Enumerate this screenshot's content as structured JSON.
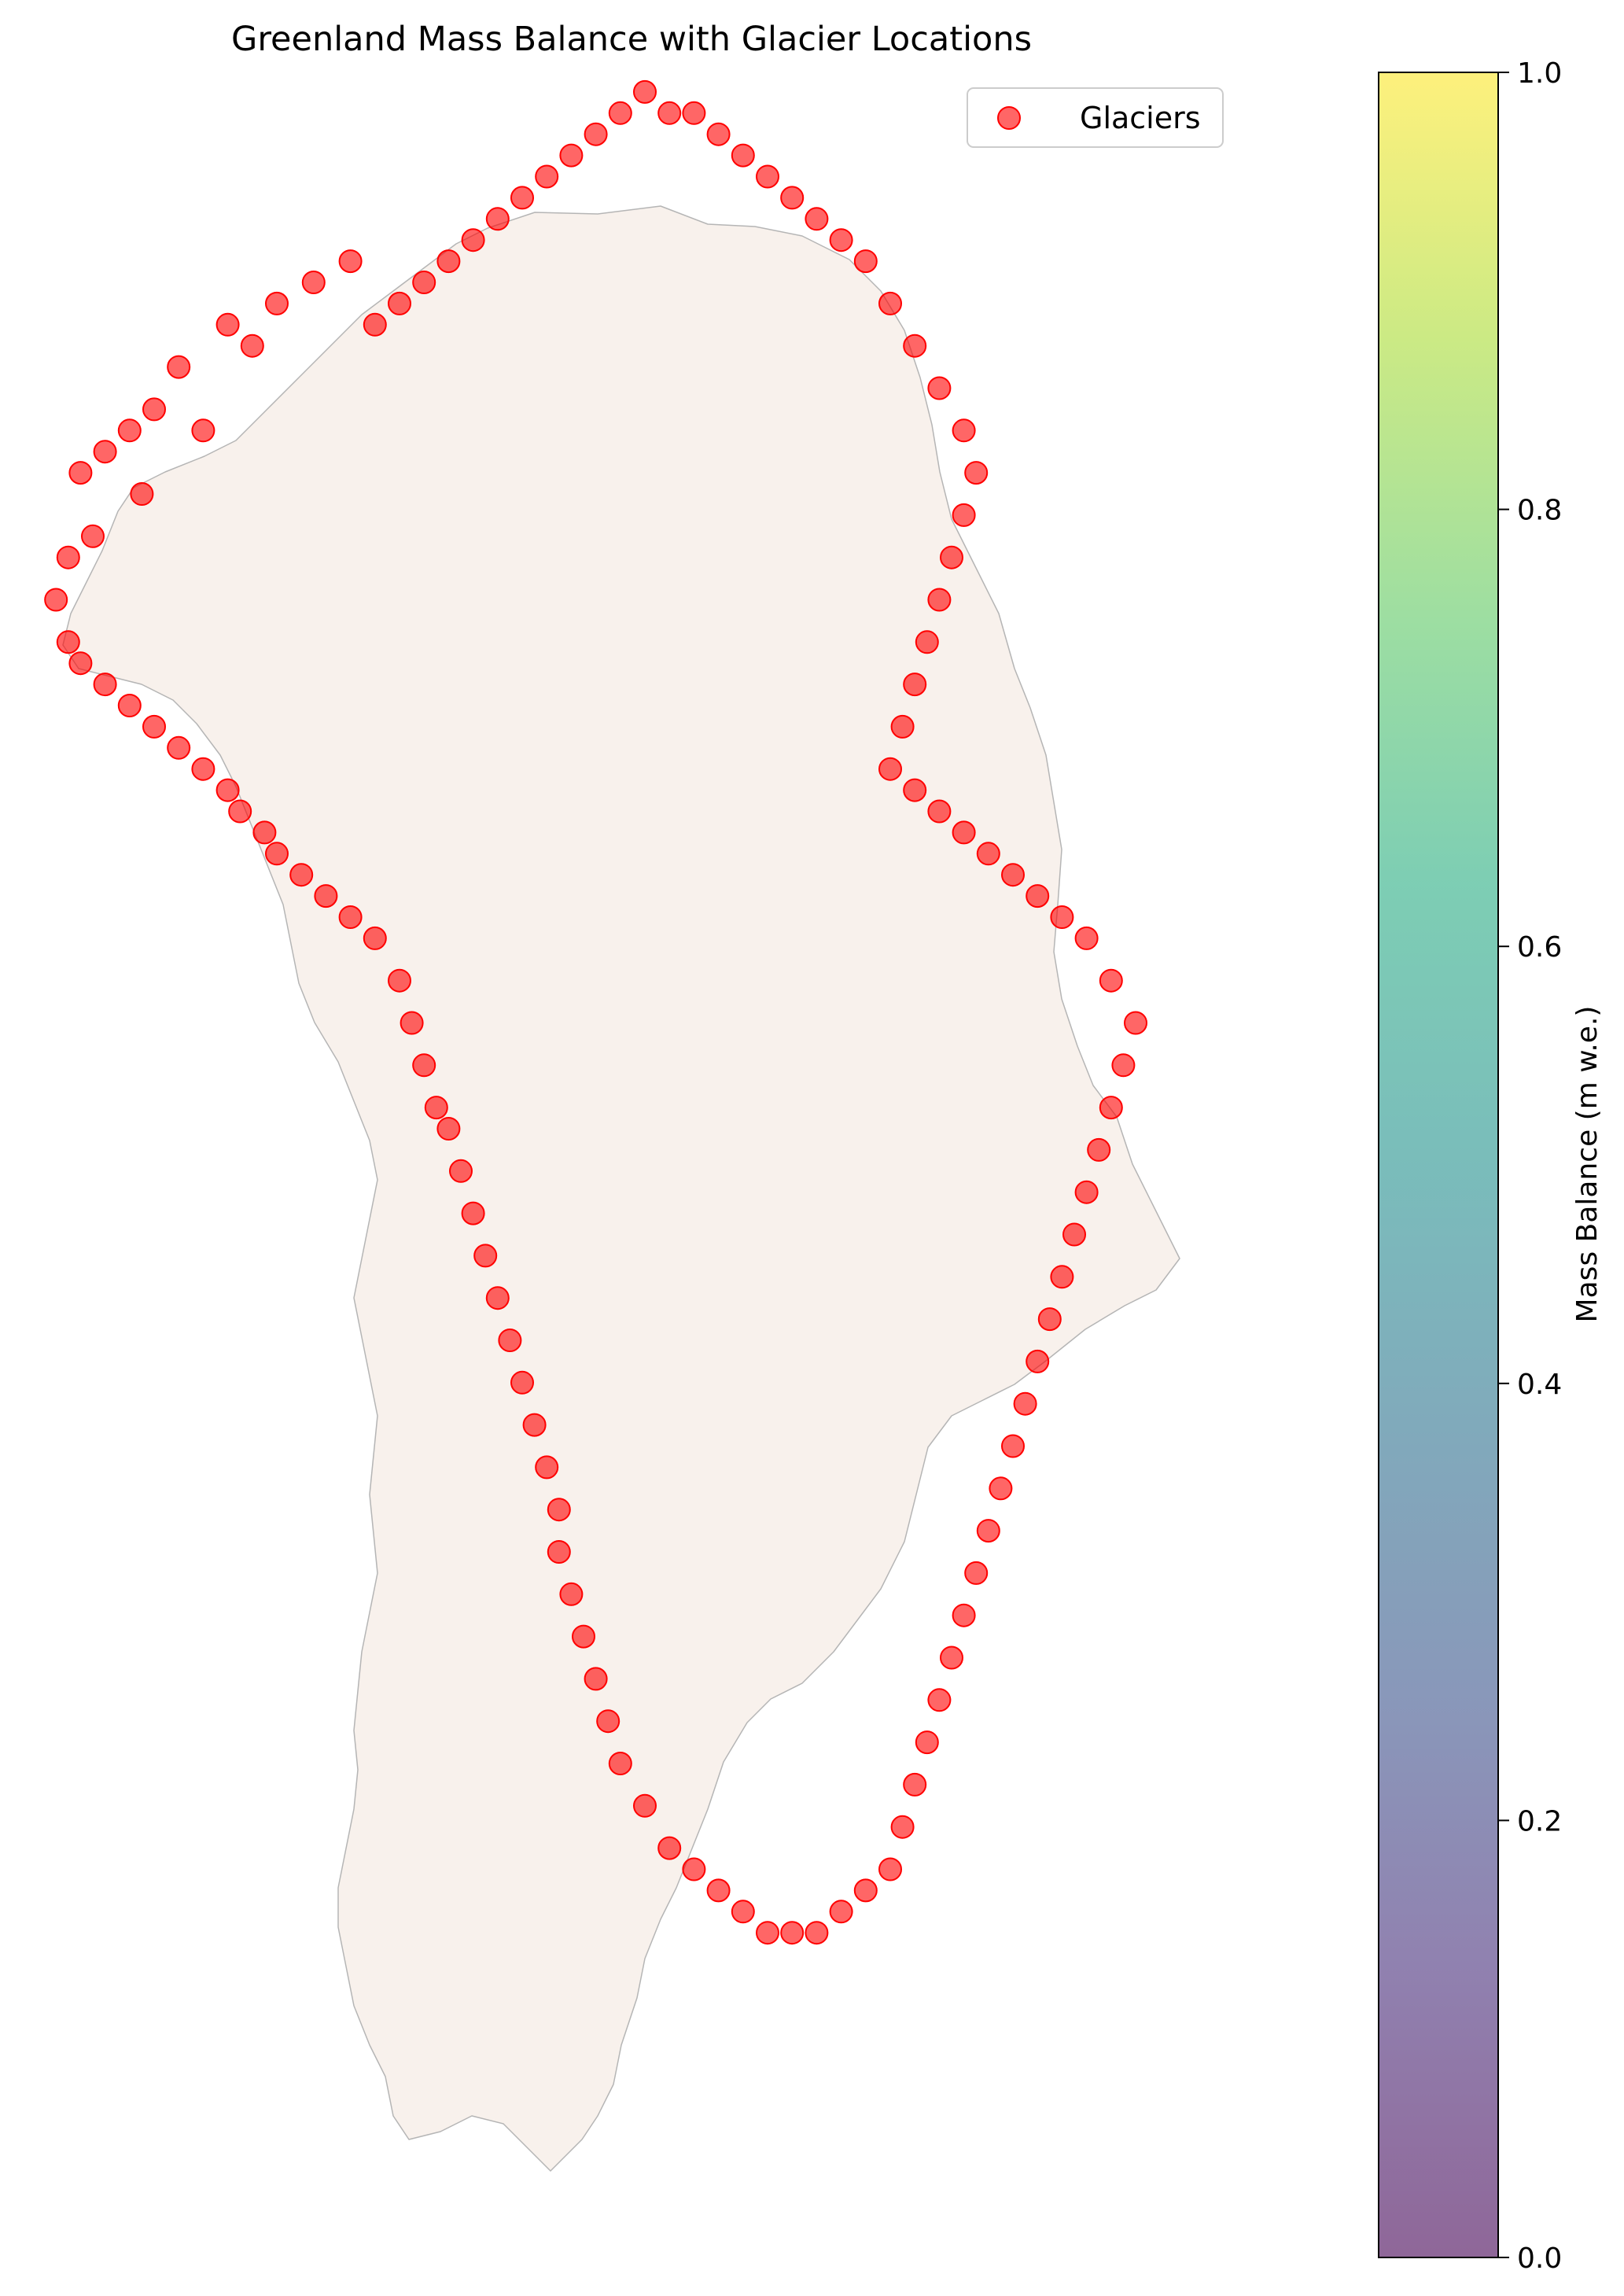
{
  "title": "Greenland Mass Balance with Glacier Locations",
  "legend": {
    "label": "Glaciers",
    "placement": "top-right"
  },
  "colorbar": {
    "label": "Mass Balance (m w.e.)",
    "range": [
      0.0,
      1.0
    ],
    "ticks": [
      "0.0",
      "0.2",
      "0.4",
      "0.6",
      "0.8",
      "1.0"
    ],
    "colormap": "viridis",
    "alpha": 0.6
  },
  "colors": {
    "glacier_marker": "#ff0000",
    "ice_sheet_fill": "#f8f1ec",
    "coastline": "#a6a6a6"
  },
  "chart_data": {
    "type": "scatter",
    "axes_visible": false,
    "series": [
      {
        "name": "Glaciers",
        "marker": "circle",
        "color": "#ff0000",
        "alpha": 0.6,
        "points": [
          [
            26,
            9
          ],
          [
            23,
            10
          ],
          [
            20,
            11
          ],
          [
            16,
            12
          ],
          [
            18,
            13
          ],
          [
            12,
            14
          ],
          [
            10,
            16
          ],
          [
            8,
            17
          ],
          [
            14,
            17
          ],
          [
            6,
            18
          ],
          [
            4,
            19
          ],
          [
            9,
            20
          ],
          [
            5,
            22
          ],
          [
            3,
            23
          ],
          [
            2,
            25
          ],
          [
            3,
            27
          ],
          [
            4,
            28
          ],
          [
            6,
            29
          ],
          [
            8,
            30
          ],
          [
            10,
            31
          ],
          [
            12,
            32
          ],
          [
            14,
            33
          ],
          [
            16,
            34
          ],
          [
            17,
            35
          ],
          [
            19,
            36
          ],
          [
            20,
            37
          ],
          [
            22,
            38
          ],
          [
            24,
            39
          ],
          [
            26,
            40
          ],
          [
            28,
            41
          ],
          [
            30,
            43
          ],
          [
            31,
            45
          ],
          [
            32,
            47
          ],
          [
            33,
            49
          ],
          [
            34,
            50
          ],
          [
            35,
            52
          ],
          [
            36,
            54
          ],
          [
            37,
            56
          ],
          [
            38,
            58
          ],
          [
            39,
            60
          ],
          [
            40,
            62
          ],
          [
            41,
            64
          ],
          [
            42,
            66
          ],
          [
            43,
            68
          ],
          [
            43,
            70
          ],
          [
            44,
            72
          ],
          [
            45,
            74
          ],
          [
            46,
            76
          ],
          [
            47,
            78
          ],
          [
            48,
            80
          ],
          [
            50,
            82
          ],
          [
            52,
            84
          ],
          [
            54,
            85
          ],
          [
            56,
            86
          ],
          [
            58,
            87
          ],
          [
            60,
            88
          ],
          [
            62,
            88
          ],
          [
            64,
            88
          ],
          [
            66,
            87
          ],
          [
            68,
            86
          ],
          [
            70,
            85
          ],
          [
            71,
            83
          ],
          [
            72,
            81
          ],
          [
            73,
            79
          ],
          [
            74,
            77
          ],
          [
            75,
            75
          ],
          [
            76,
            73
          ],
          [
            77,
            71
          ],
          [
            78,
            69
          ],
          [
            79,
            67
          ],
          [
            80,
            65
          ],
          [
            81,
            63
          ],
          [
            82,
            61
          ],
          [
            83,
            59
          ],
          [
            84,
            57
          ],
          [
            85,
            55
          ],
          [
            86,
            53
          ],
          [
            87,
            51
          ],
          [
            88,
            49
          ],
          [
            89,
            47
          ],
          [
            90,
            45
          ],
          [
            88,
            43
          ],
          [
            86,
            41
          ],
          [
            84,
            40
          ],
          [
            82,
            39
          ],
          [
            80,
            38
          ],
          [
            78,
            37
          ],
          [
            76,
            36
          ],
          [
            74,
            35
          ],
          [
            72,
            34
          ],
          [
            70,
            33
          ],
          [
            71,
            31
          ],
          [
            72,
            29
          ],
          [
            73,
            27
          ],
          [
            74,
            25
          ],
          [
            75,
            23
          ],
          [
            76,
            21
          ],
          [
            77,
            19
          ],
          [
            76,
            17
          ],
          [
            74,
            15
          ],
          [
            72,
            13
          ],
          [
            70,
            11
          ],
          [
            68,
            9
          ],
          [
            66,
            8
          ],
          [
            64,
            7
          ],
          [
            62,
            6
          ],
          [
            60,
            5
          ],
          [
            58,
            4
          ],
          [
            56,
            3
          ],
          [
            54,
            2
          ],
          [
            52,
            2
          ],
          [
            50,
            1
          ],
          [
            48,
            2
          ],
          [
            46,
            3
          ],
          [
            44,
            4
          ],
          [
            42,
            5
          ],
          [
            40,
            6
          ],
          [
            38,
            7
          ],
          [
            36,
            8
          ],
          [
            34,
            9
          ],
          [
            32,
            10
          ],
          [
            30,
            11
          ],
          [
            28,
            12
          ]
        ]
      }
    ]
  }
}
